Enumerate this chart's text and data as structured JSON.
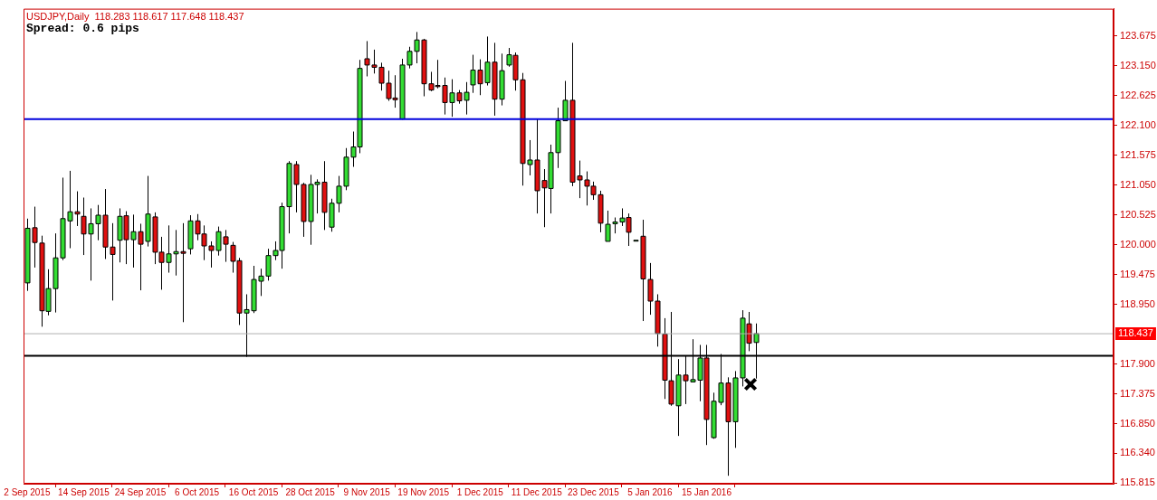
{
  "chart_data": {
    "type": "candlestick",
    "title": "USDJPY,Daily  118.283 118.617 117.648 118.437",
    "subtitle": "Spread: 0.6 pips",
    "categories": [
      "2 Sep 2015",
      null,
      null,
      null,
      null,
      null,
      null,
      null,
      "14 Sep 2015",
      null,
      null,
      null,
      null,
      null,
      null,
      null,
      "24 Sep 2015",
      null,
      null,
      null,
      null,
      null,
      null,
      null,
      "6 Oct 2015",
      null,
      null,
      null,
      null,
      null,
      null,
      null,
      "16 Oct 2015",
      null,
      null,
      null,
      null,
      null,
      null,
      null,
      "28 Oct 2015",
      null,
      null,
      null,
      null,
      null,
      null,
      null,
      "9 Nov 2015",
      null,
      null,
      null,
      null,
      null,
      null,
      null,
      "19 Nov 2015",
      null,
      null,
      null,
      null,
      null,
      null,
      null,
      "1 Dec 2015",
      null,
      null,
      null,
      null,
      null,
      null,
      null,
      "11 Dec 2015",
      null,
      null,
      null,
      null,
      null,
      null,
      null,
      "23 Dec 2015",
      null,
      null,
      null,
      null,
      null,
      null,
      null,
      "5 Jan 2016",
      null,
      null,
      null,
      null,
      null,
      null,
      null,
      "15 Jan 2016",
      null,
      null,
      null,
      null,
      null,
      null,
      null,
      null,
      null,
      null,
      null,
      null,
      null,
      null,
      null,
      null,
      null,
      null,
      null,
      null,
      null,
      null,
      null,
      null,
      null,
      null,
      null,
      null,
      null,
      null,
      null,
      null,
      null,
      null,
      null,
      null,
      null,
      null,
      null,
      null,
      null,
      null,
      null,
      null,
      null,
      null,
      null,
      null,
      null,
      null,
      null,
      null,
      null,
      null,
      null,
      null,
      null
    ],
    "ohlc": [
      [
        119.33,
        120.46,
        119.19,
        120.29
      ],
      [
        120.3,
        120.67,
        119.6,
        120.04
      ],
      [
        120.03,
        120.16,
        118.56,
        118.84
      ],
      [
        118.83,
        119.57,
        118.76,
        119.23
      ],
      [
        119.23,
        120.2,
        118.81,
        119.77
      ],
      [
        119.77,
        121.18,
        119.73,
        120.46
      ],
      [
        120.42,
        121.3,
        119.94,
        120.58
      ],
      [
        120.58,
        120.94,
        120.33,
        120.54
      ],
      [
        120.5,
        120.83,
        119.82,
        120.19
      ],
      [
        120.19,
        120.64,
        119.37,
        120.37
      ],
      [
        120.37,
        120.7,
        120.08,
        120.52
      ],
      [
        120.52,
        120.98,
        119.75,
        119.96
      ],
      [
        119.96,
        120.38,
        119.02,
        119.83
      ],
      [
        120.08,
        120.64,
        119.69,
        120.5
      ],
      [
        120.51,
        120.59,
        119.66,
        120.09
      ],
      [
        120.09,
        120.53,
        119.6,
        120.23
      ],
      [
        120.23,
        120.37,
        119.2,
        120.01
      ],
      [
        120.06,
        121.21,
        119.97,
        120.54
      ],
      [
        120.49,
        120.57,
        119.66,
        119.87
      ],
      [
        119.87,
        120.14,
        119.21,
        119.69
      ],
      [
        119.69,
        120.34,
        119.51,
        119.84
      ],
      [
        119.84,
        120.26,
        119.46,
        119.88
      ],
      [
        119.88,
        120.38,
        118.64,
        119.85
      ],
      [
        119.93,
        120.52,
        119.83,
        120.42
      ],
      [
        120.42,
        120.54,
        120.08,
        120.19
      ],
      [
        120.19,
        120.34,
        119.73,
        119.98
      ],
      [
        119.98,
        120.06,
        119.6,
        119.9
      ],
      [
        119.9,
        120.32,
        119.81,
        120.23
      ],
      [
        120.14,
        120.26,
        119.7,
        120.01
      ],
      [
        119.99,
        120.05,
        119.51,
        119.71
      ],
      [
        119.72,
        119.77,
        118.59,
        118.8
      ],
      [
        118.8,
        119.13,
        118.03,
        118.86
      ],
      [
        118.84,
        119.63,
        118.8,
        119.39
      ],
      [
        119.36,
        119.58,
        119.1,
        119.45
      ],
      [
        119.45,
        119.93,
        119.37,
        119.81
      ],
      [
        119.81,
        120.06,
        119.73,
        119.9
      ],
      [
        119.9,
        120.74,
        119.58,
        120.67
      ],
      [
        120.67,
        121.47,
        120.2,
        121.43
      ],
      [
        121.41,
        121.47,
        120.57,
        121.06
      ],
      [
        121.06,
        121.09,
        120.14,
        120.41
      ],
      [
        120.41,
        121.23,
        120.0,
        121.06
      ],
      [
        121.06,
        121.15,
        120.55,
        121.1
      ],
      [
        121.1,
        121.47,
        120.26,
        120.57
      ],
      [
        120.31,
        120.81,
        120.23,
        120.73
      ],
      [
        120.73,
        121.21,
        120.57,
        121.03
      ],
      [
        121.03,
        121.7,
        120.96,
        121.54
      ],
      [
        121.54,
        121.99,
        121.37,
        121.72
      ],
      [
        121.72,
        123.25,
        121.61,
        123.1
      ],
      [
        123.27,
        123.58,
        122.96,
        123.16
      ],
      [
        123.16,
        123.43,
        123.01,
        123.12
      ],
      [
        123.12,
        123.2,
        122.71,
        122.84
      ],
      [
        122.84,
        123.06,
        122.53,
        122.57
      ],
      [
        122.58,
        122.98,
        122.41,
        122.55
      ],
      [
        122.21,
        123.27,
        122.2,
        123.16
      ],
      [
        123.16,
        123.48,
        123.1,
        123.4
      ],
      [
        123.4,
        123.74,
        123.19,
        123.6
      ],
      [
        123.6,
        123.62,
        122.61,
        122.83
      ],
      [
        122.83,
        123.04,
        122.7,
        122.72
      ],
      [
        122.8,
        123.25,
        122.75,
        122.78
      ],
      [
        122.8,
        122.94,
        122.29,
        122.5
      ],
      [
        122.5,
        122.91,
        122.25,
        122.67
      ],
      [
        122.67,
        122.72,
        122.48,
        122.53
      ],
      [
        122.54,
        122.86,
        122.29,
        122.68
      ],
      [
        122.81,
        123.34,
        122.67,
        123.07
      ],
      [
        123.07,
        123.26,
        122.63,
        122.83
      ],
      [
        122.85,
        123.66,
        122.8,
        123.21
      ],
      [
        123.21,
        123.55,
        122.27,
        122.56
      ],
      [
        122.56,
        123.36,
        122.45,
        123.06
      ],
      [
        123.16,
        123.46,
        123.13,
        123.34
      ],
      [
        123.33,
        123.38,
        122.71,
        122.9
      ],
      [
        122.9,
        123.02,
        121.04,
        121.43
      ],
      [
        121.41,
        121.84,
        121.22,
        121.49
      ],
      [
        121.49,
        122.21,
        120.55,
        120.95
      ],
      [
        121.13,
        121.33,
        120.31,
        121.0
      ],
      [
        120.99,
        121.76,
        120.55,
        121.62
      ],
      [
        121.62,
        122.41,
        121.35,
        122.18
      ],
      [
        122.18,
        122.88,
        122.18,
        122.54
      ],
      [
        122.54,
        123.55,
        121.03,
        121.1
      ],
      [
        121.21,
        121.48,
        120.82,
        121.14
      ],
      [
        121.14,
        121.29,
        120.69,
        121.03
      ],
      [
        121.03,
        121.11,
        120.79,
        120.88
      ],
      [
        120.88,
        120.95,
        120.22,
        120.38
      ],
      [
        120.06,
        120.6,
        120.06,
        120.36
      ],
      [
        120.37,
        120.48,
        120.2,
        120.4
      ],
      [
        120.4,
        120.64,
        120.33,
        120.47
      ],
      [
        120.48,
        120.55,
        119.98,
        120.22
      ],
      [
        120.08,
        120.08,
        120.08,
        120.08
      ],
      [
        120.15,
        120.44,
        118.66,
        119.4
      ],
      [
        119.39,
        119.68,
        118.77,
        119.01
      ],
      [
        119.01,
        119.13,
        118.21,
        118.44
      ],
      [
        118.43,
        118.71,
        117.29,
        117.62
      ],
      [
        117.61,
        118.82,
        117.17,
        117.2
      ],
      [
        117.17,
        117.99,
        116.64,
        117.71
      ],
      [
        117.71,
        118.05,
        117.2,
        117.61
      ],
      [
        117.59,
        118.34,
        117.58,
        117.63
      ],
      [
        117.62,
        118.24,
        117.25,
        118.01
      ],
      [
        118.01,
        118.24,
        116.48,
        116.93
      ],
      [
        116.61,
        117.4,
        116.59,
        117.25
      ],
      [
        117.23,
        118.08,
        117.18,
        117.57
      ],
      [
        117.57,
        117.67,
        115.94,
        116.89
      ],
      [
        116.89,
        117.78,
        116.43,
        117.66
      ],
      [
        117.66,
        118.85,
        117.51,
        118.71
      ],
      [
        118.61,
        118.82,
        118.13,
        118.27
      ],
      [
        118.283,
        118.617,
        117.648,
        118.437
      ],
      null,
      null,
      null,
      null,
      null,
      null,
      null,
      null,
      null,
      null,
      null,
      null,
      null,
      null,
      null,
      null,
      null,
      null,
      null,
      null,
      null,
      null,
      null,
      null,
      null,
      null,
      null,
      null,
      null,
      null,
      null,
      null,
      null,
      null,
      null,
      null,
      null,
      null,
      null,
      null,
      null,
      null,
      null,
      null,
      null,
      null,
      null,
      null,
      null,
      null
    ],
    "colors": [
      "#33dd33",
      "#e01010",
      "#e01010",
      "#33dd33",
      "#33dd33",
      "#33dd33",
      "#33dd33",
      "#e01010",
      "#e01010",
      "#33dd33",
      "#33dd33",
      "#e01010",
      "#e01010",
      "#33dd33",
      "#e01010",
      "#33dd33",
      "#e01010",
      "#33dd33",
      "#e01010",
      "#e01010",
      "#33dd33",
      "#33dd33",
      "#e01010",
      "#33dd33",
      "#e01010",
      "#e01010",
      "#e01010",
      "#33dd33",
      "#e01010",
      "#e01010",
      "#e01010",
      "#33dd33",
      "#33dd33",
      "#33dd33",
      "#33dd33",
      "#33dd33",
      "#33dd33",
      "#33dd33",
      "#e01010",
      "#e01010",
      "#33dd33",
      "#33dd33",
      "#e01010",
      "#33dd33",
      "#33dd33",
      "#33dd33",
      "#33dd33",
      "#33dd33",
      "#e01010",
      "#e01010",
      "#e01010",
      "#e01010",
      "#e01010",
      "#33dd33",
      "#33dd33",
      "#33dd33",
      "#e01010",
      "#e01010",
      "#e01010",
      "#e01010",
      "#33dd33",
      "#e01010",
      "#33dd33",
      "#33dd33",
      "#e01010",
      "#33dd33",
      "#e01010",
      "#33dd33",
      "#33dd33",
      "#e01010",
      "#e01010",
      "#33dd33",
      "#e01010",
      "#e01010",
      "#33dd33",
      "#33dd33",
      "#33dd33",
      "#e01010",
      "#e01010",
      "#e01010",
      "#e01010",
      "#e01010",
      "#33dd33",
      "#33dd33",
      "#33dd33",
      "#e01010",
      "#33dd33",
      "#e01010",
      "#e01010",
      "#e01010",
      "#e01010",
      "#e01010",
      "#33dd33",
      "#e01010",
      "#33dd33",
      "#33dd33",
      "#e01010",
      "#33dd33",
      "#33dd33",
      "#e01010",
      "#33dd33",
      "#33dd33",
      "#e01010",
      "#33dd33",
      null,
      null,
      null,
      null,
      null,
      null,
      null,
      null,
      null,
      null,
      null,
      null,
      null,
      null,
      null,
      null,
      null,
      null,
      null,
      null,
      null,
      null,
      null,
      null,
      null,
      null,
      null,
      null,
      null,
      null,
      null,
      null,
      null,
      null,
      null,
      null,
      null,
      null,
      null,
      null,
      null,
      null,
      null,
      null,
      null,
      null,
      null,
      null,
      null,
      null
    ],
    "ylim": [
      115.8,
      124.15
    ],
    "yticks": [
      123.675,
      {
        "value": 123.15,
        "label": "123.150"
      },
      122.625,
      {
        "value": 122.1,
        "label": "122.100"
      },
      121.575,
      {
        "value": 121.05,
        "label": "121.050"
      },
      120.525,
      {
        "value": 120,
        "label": "120.000"
      },
      119.475,
      {
        "value": 118.95,
        "label": "118.950"
      },
      {
        "value": 117.9,
        "label": "117.900"
      },
      117.375,
      {
        "value": 116.85,
        "label": "116.850"
      },
      {
        "value": 116.34,
        "label": "116.340"
      },
      115.815
    ],
    "ref_lines": [
      {
        "axis": "y",
        "value": 122.21,
        "color": "#0000dd",
        "line_style": "solid"
      },
      {
        "axis": "y",
        "value": 118.05,
        "color": "#000000",
        "line_style": "solid"
      },
      {
        "axis": "y",
        "value": 118.437,
        "label": "118.437",
        "color": "#b0b0b0",
        "line_style": "solid"
      }
    ],
    "grid": false,
    "legend": false
  }
}
